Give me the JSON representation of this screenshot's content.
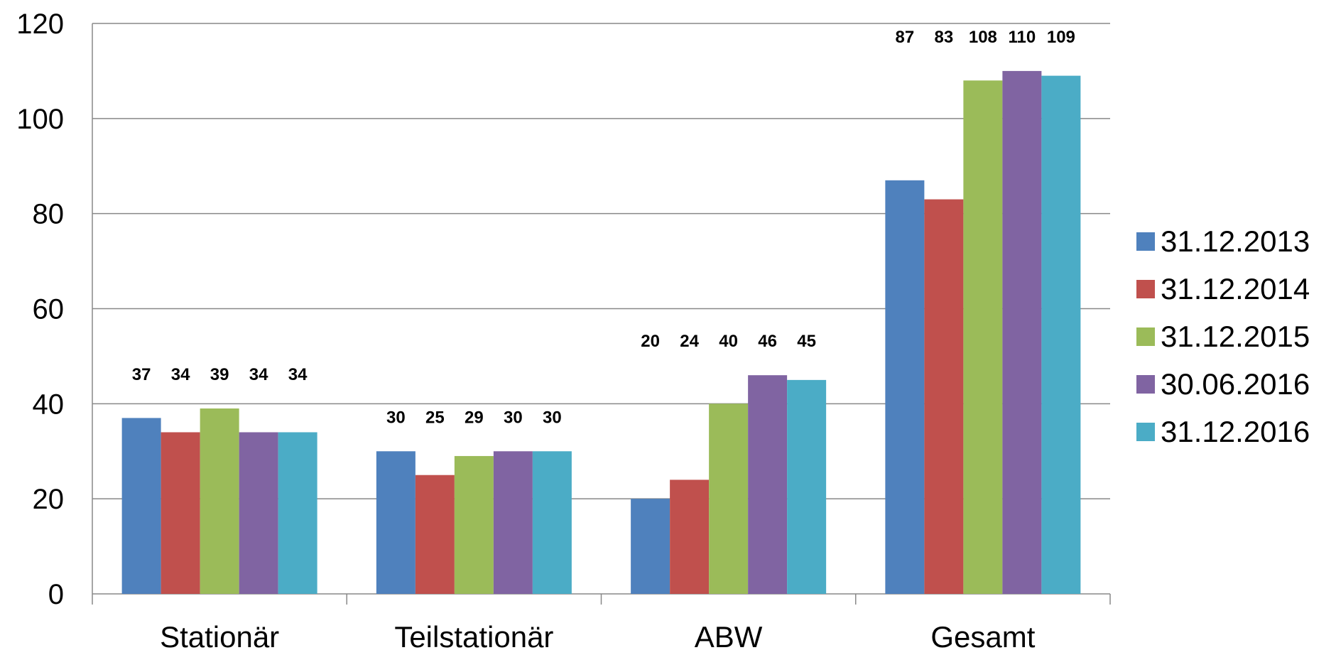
{
  "chart_data": {
    "type": "bar",
    "categories": [
      "Stationär",
      "Teilstationär",
      "ABW",
      "Gesamt"
    ],
    "series": [
      {
        "name": "31.12.2013",
        "color": "#4F81BD",
        "values": [
          37,
          30,
          20,
          87
        ]
      },
      {
        "name": "31.12.2014",
        "color": "#C0504D",
        "values": [
          34,
          25,
          24,
          83
        ]
      },
      {
        "name": "31.12.2015",
        "color": "#9BBB59",
        "values": [
          39,
          29,
          40,
          108
        ]
      },
      {
        "name": "30.06.2016",
        "color": "#8064A2",
        "values": [
          34,
          30,
          46,
          110
        ]
      },
      {
        "name": "31.12.2016",
        "color": "#4BACC6",
        "values": [
          34,
          30,
          45,
          109
        ]
      }
    ],
    "yticks": [
      "0",
      "20",
      "40",
      "60",
      "80",
      "100",
      "120"
    ],
    "ylim": [
      0,
      120
    ],
    "grid": true,
    "legend_position": "right",
    "title": "",
    "xlabel": "",
    "ylabel": ""
  }
}
